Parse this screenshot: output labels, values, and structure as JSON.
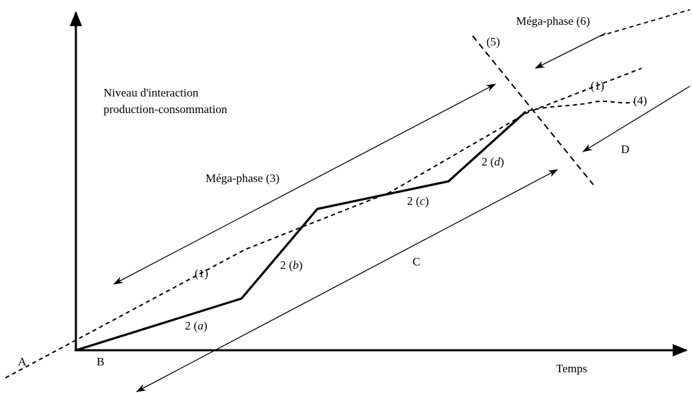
{
  "axes": {
    "y_label_line1": "Niveau d'interaction",
    "y_label_line2": "production-consommation",
    "x_label": "Temps"
  },
  "points": {
    "A": "A",
    "B": "B",
    "C": "C",
    "D": "D"
  },
  "megaphases": {
    "three": "Méga-phase (3)",
    "six": "Méga-phase (6)"
  },
  "markers": {
    "one_lower": "(1)",
    "one_upper": "(1)",
    "four": "(4)",
    "five": "(5)"
  },
  "segments": {
    "a": {
      "num": "2",
      "letter": "a"
    },
    "b": {
      "num": "2",
      "letter": "b"
    },
    "c": {
      "num": "2",
      "letter": "c"
    },
    "d": {
      "num": "2",
      "letter": "d"
    }
  }
}
